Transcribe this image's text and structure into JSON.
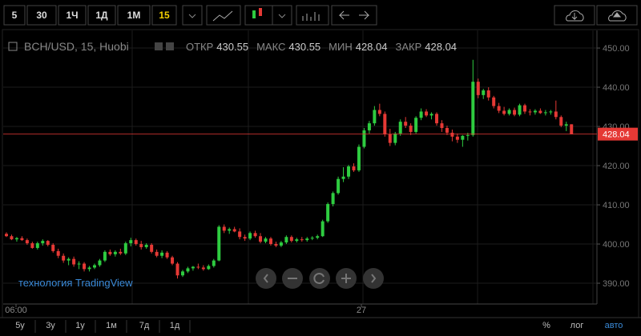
{
  "toolbar": {
    "intervals": [
      "5",
      "30",
      "1Ч",
      "1Д",
      "1М",
      "15"
    ]
  },
  "chart": {
    "type": "candlestick",
    "symbol": "BCH/USD, 15, Huobi",
    "ohlc_labels": [
      "ОТКР",
      "МАКС",
      "МИН",
      "ЗАКР"
    ],
    "up_color": "#2ecc40",
    "down_color": "#e53935",
    "ylim": [
      384.7,
      454.5
    ],
    "yticks": [
      {
        "value": 390,
        "label": "390.00"
      },
      {
        "value": 400,
        "label": "400.00"
      },
      {
        "value": 410,
        "label": "410.00"
      },
      {
        "value": 420,
        "label": "420.00"
      },
      {
        "value": 430,
        "label": "430.00"
      },
      {
        "value": 440,
        "label": "440.00"
      },
      {
        "value": 450,
        "label": "450.00"
      }
    ],
    "xlabels": [
      "06:00",
      "27"
    ],
    "watermark": "технология TradingView",
    "candles": [
      [
        402.6,
        403.0,
        401.8,
        402.0
      ],
      [
        402.0,
        402.4,
        401.0,
        401.2
      ],
      [
        401.2,
        401.8,
        400.6,
        401.5
      ],
      [
        401.5,
        402.0,
        400.8,
        401.0
      ],
      [
        401.0,
        401.4,
        399.8,
        400.2
      ],
      [
        400.2,
        400.6,
        398.8,
        399.0
      ],
      [
        399.0,
        400.6,
        398.6,
        400.2
      ],
      [
        400.2,
        401.2,
        399.6,
        400.8
      ],
      [
        400.8,
        401.0,
        399.4,
        399.8
      ],
      [
        399.8,
        400.2,
        397.8,
        398.2
      ],
      [
        398.2,
        398.8,
        396.4,
        397.0
      ],
      [
        397.0,
        397.6,
        395.2,
        395.8
      ],
      [
        395.8,
        396.6,
        394.6,
        396.2
      ],
      [
        396.2,
        396.8,
        394.2,
        394.8
      ],
      [
        394.8,
        395.6,
        393.6,
        395.0
      ],
      [
        395.0,
        395.4,
        393.0,
        393.6
      ],
      [
        393.6,
        394.4,
        393.0,
        394.0
      ],
      [
        394.0,
        395.0,
        393.6,
        394.6
      ],
      [
        394.6,
        396.2,
        394.2,
        395.8
      ],
      [
        395.8,
        398.4,
        395.4,
        398.0
      ],
      [
        398.0,
        398.6,
        397.0,
        397.4
      ],
      [
        397.4,
        398.4,
        396.8,
        398.0
      ],
      [
        398.0,
        398.8,
        397.2,
        397.6
      ],
      [
        397.6,
        400.6,
        397.2,
        400.2
      ],
      [
        400.2,
        401.6,
        399.4,
        401.0
      ],
      [
        401.0,
        401.4,
        399.6,
        400.0
      ],
      [
        400.0,
        400.8,
        398.6,
        399.2
      ],
      [
        399.2,
        400.2,
        398.8,
        399.8
      ],
      [
        399.8,
        400.2,
        397.6,
        398.0
      ],
      [
        398.0,
        398.6,
        396.6,
        397.0
      ],
      [
        397.0,
        398.4,
        396.4,
        397.8
      ],
      [
        397.8,
        398.2,
        396.2,
        396.6
      ],
      [
        396.6,
        397.0,
        394.6,
        395.0
      ],
      [
        395.0,
        395.4,
        391.2,
        392.0
      ],
      [
        392.0,
        393.4,
        391.6,
        393.0
      ],
      [
        393.0,
        394.2,
        392.6,
        393.8
      ],
      [
        393.8,
        394.4,
        393.2,
        394.2
      ],
      [
        394.2,
        395.0,
        393.6,
        394.0
      ],
      [
        394.0,
        394.6,
        393.2,
        393.6
      ],
      [
        393.6,
        394.8,
        393.4,
        394.4
      ],
      [
        394.4,
        396.2,
        394.0,
        395.8
      ],
      [
        395.8,
        404.8,
        395.6,
        404.4
      ],
      [
        404.4,
        405.0,
        402.8,
        403.4
      ],
      [
        403.4,
        404.2,
        402.6,
        403.8
      ],
      [
        403.8,
        404.4,
        403.0,
        403.2
      ],
      [
        403.2,
        404.0,
        401.2,
        401.8
      ],
      [
        401.8,
        402.4,
        400.8,
        401.4
      ],
      [
        401.4,
        403.2,
        401.0,
        402.8
      ],
      [
        402.8,
        403.4,
        401.6,
        402.0
      ],
      [
        402.0,
        402.8,
        400.2,
        400.6
      ],
      [
        400.6,
        401.8,
        400.2,
        401.4
      ],
      [
        401.4,
        401.8,
        399.6,
        400.0
      ],
      [
        400.0,
        400.6,
        399.2,
        399.6
      ],
      [
        399.6,
        400.8,
        399.2,
        400.4
      ],
      [
        400.4,
        402.2,
        400.0,
        401.8
      ],
      [
        401.8,
        402.2,
        400.4,
        400.8
      ],
      [
        400.8,
        401.6,
        400.4,
        401.2
      ],
      [
        401.2,
        401.8,
        400.6,
        401.0
      ],
      [
        401.0,
        401.8,
        400.6,
        401.4
      ],
      [
        401.4,
        402.0,
        401.0,
        401.6
      ],
      [
        401.6,
        402.4,
        401.2,
        402.0
      ],
      [
        402.0,
        406.2,
        401.8,
        405.8
      ],
      [
        405.8,
        410.6,
        405.4,
        410.2
      ],
      [
        410.2,
        413.4,
        409.6,
        413.0
      ],
      [
        413.0,
        417.2,
        412.6,
        416.6
      ],
      [
        416.6,
        419.6,
        415.8,
        417.2
      ],
      [
        417.2,
        420.2,
        416.6,
        419.8
      ],
      [
        419.8,
        420.6,
        418.4,
        418.8
      ],
      [
        418.8,
        425.4,
        418.4,
        424.8
      ],
      [
        424.8,
        429.6,
        424.4,
        429.0
      ],
      [
        429.0,
        431.4,
        428.2,
        430.8
      ],
      [
        430.8,
        435.2,
        430.2,
        434.2
      ],
      [
        434.2,
        435.8,
        432.6,
        433.2
      ],
      [
        433.2,
        433.8,
        427.4,
        428.0
      ],
      [
        428.0,
        429.4,
        425.0,
        425.8
      ],
      [
        425.8,
        428.6,
        425.2,
        428.2
      ],
      [
        428.2,
        431.8,
        427.6,
        431.2
      ],
      [
        431.2,
        432.4,
        429.6,
        430.2
      ],
      [
        430.2,
        430.8,
        427.8,
        428.6
      ],
      [
        428.6,
        432.6,
        428.2,
        432.2
      ],
      [
        432.2,
        434.6,
        431.6,
        433.8
      ],
      [
        433.8,
        434.4,
        432.4,
        432.8
      ],
      [
        432.8,
        433.6,
        431.8,
        433.2
      ],
      [
        433.2,
        433.6,
        430.2,
        430.8
      ],
      [
        430.8,
        431.6,
        428.6,
        429.6
      ],
      [
        429.6,
        430.2,
        427.8,
        428.4
      ],
      [
        428.4,
        429.2,
        426.2,
        427.4
      ],
      [
        427.4,
        428.2,
        425.8,
        426.6
      ],
      [
        426.6,
        427.8,
        424.8,
        427.6
      ],
      [
        427.6,
        428.4,
        426.4,
        427.8
      ],
      [
        427.8,
        447.0,
        427.4,
        441.4
      ],
      [
        441.4,
        442.2,
        437.2,
        438.0
      ],
      [
        438.0,
        439.6,
        437.0,
        439.2
      ],
      [
        439.2,
        440.0,
        436.6,
        437.4
      ],
      [
        437.4,
        437.8,
        434.6,
        435.2
      ],
      [
        435.2,
        436.0,
        433.4,
        434.0
      ],
      [
        434.0,
        435.0,
        432.8,
        433.2
      ],
      [
        433.2,
        434.6,
        432.8,
        434.2
      ],
      [
        434.2,
        434.8,
        432.6,
        433.0
      ],
      [
        433.0,
        435.8,
        432.6,
        435.4
      ],
      [
        435.4,
        435.8,
        433.2,
        433.8
      ],
      [
        433.8,
        434.4,
        432.8,
        433.6
      ],
      [
        433.6,
        434.4,
        433.0,
        434.0
      ],
      [
        434.0,
        434.6,
        433.2,
        433.4
      ],
      [
        433.4,
        434.2,
        432.8,
        433.6
      ],
      [
        433.6,
        434.2,
        433.0,
        433.8
      ],
      [
        433.8,
        436.6,
        431.8,
        432.4
      ],
      [
        432.4,
        432.8,
        429.8,
        430.2
      ],
      [
        430.2,
        431.2,
        428.8,
        430.55
      ],
      [
        430.55,
        430.55,
        428.04,
        428.04
      ]
    ]
  },
  "bottom_bar": {
    "ranges": [
      "5y",
      "3y",
      "1y",
      "1м",
      "7д",
      "1д"
    ],
    "options": [
      "%",
      "лог",
      "авто"
    ]
  }
}
